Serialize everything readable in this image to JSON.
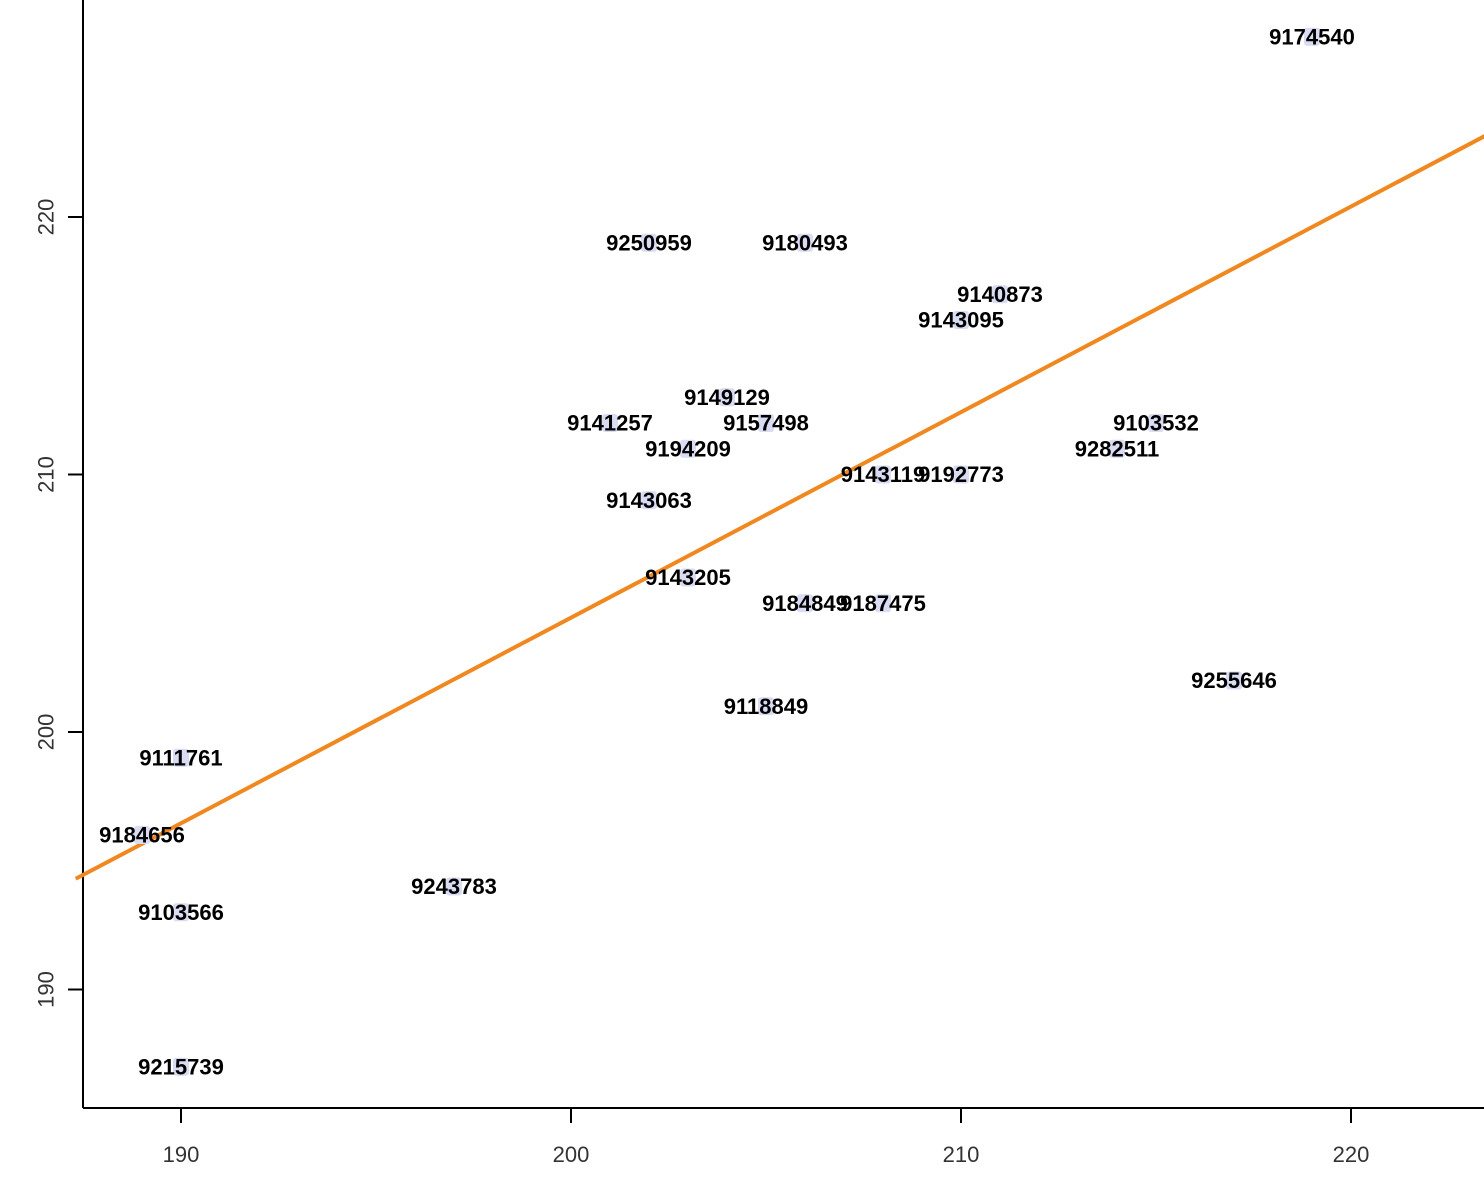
{
  "colors": {
    "background": "#ffffff",
    "axis": "#000000",
    "trend_line": "#f0881f",
    "point_marker": "#d9dcf2",
    "label_text": "#000000"
  },
  "chart_data": {
    "type": "scatter",
    "title": "",
    "xlabel": "",
    "ylabel": "",
    "xlim": [
      187.5,
      223.5
    ],
    "ylim": [
      185.3,
      228.2
    ],
    "x_ticks": [
      190,
      200,
      210,
      220
    ],
    "y_ticks": [
      190,
      200,
      210,
      220
    ],
    "grid": false,
    "points": [
      {
        "label": "9174540",
        "x": 219,
        "y": 227
      },
      {
        "label": "9250959",
        "x": 202,
        "y": 219
      },
      {
        "label": "9180493",
        "x": 206,
        "y": 219
      },
      {
        "label": "9140873",
        "x": 211,
        "y": 217
      },
      {
        "label": "9143095",
        "x": 210,
        "y": 216
      },
      {
        "label": "9149129",
        "x": 204,
        "y": 213
      },
      {
        "label": "9141257",
        "x": 201,
        "y": 212
      },
      {
        "label": "9157498",
        "x": 205,
        "y": 212
      },
      {
        "label": "9103532",
        "x": 215,
        "y": 212
      },
      {
        "label": "9194209",
        "x": 203,
        "y": 211
      },
      {
        "label": "9282511",
        "x": 214,
        "y": 211
      },
      {
        "label": "9143119",
        "x": 208,
        "y": 210
      },
      {
        "label": "9192773",
        "x": 210,
        "y": 210
      },
      {
        "label": "9143063",
        "x": 202,
        "y": 209
      },
      {
        "label": "9143205",
        "x": 203,
        "y": 206
      },
      {
        "label": "9184849",
        "x": 206,
        "y": 205
      },
      {
        "label": "9187475",
        "x": 208,
        "y": 205
      },
      {
        "label": "9255646",
        "x": 217,
        "y": 202
      },
      {
        "label": "9118849",
        "x": 205,
        "y": 201
      },
      {
        "label": "9111761",
        "x": 190,
        "y": 199
      },
      {
        "label": "9184656",
        "x": 189,
        "y": 196
      },
      {
        "label": "9243783",
        "x": 197,
        "y": 194
      },
      {
        "label": "9103566",
        "x": 190,
        "y": 193
      },
      {
        "label": "9215739",
        "x": 190,
        "y": 187
      }
    ],
    "trend_line": {
      "x": [
        187.3,
        223.5
      ],
      "y": [
        194.3,
        223.2
      ]
    }
  }
}
